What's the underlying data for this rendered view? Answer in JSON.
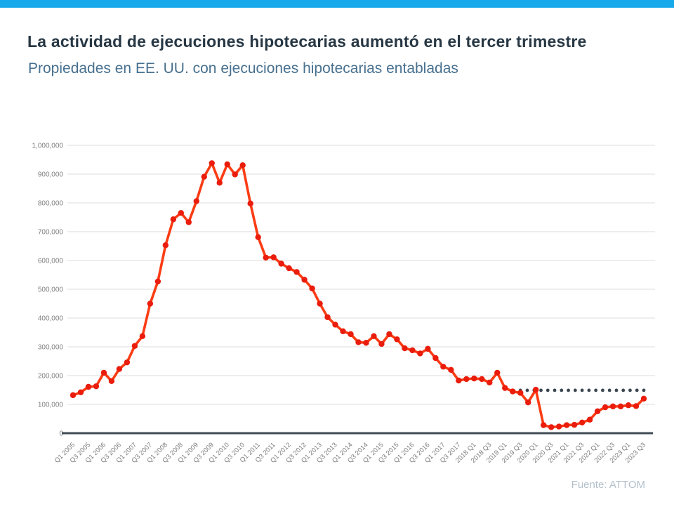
{
  "page": {
    "accent_bar_color": "#18a8ec",
    "background": "#ffffff"
  },
  "header": {
    "title": "La actividad de ejecuciones hipotecarias aumentó en el tercer trimestre",
    "title_color": "#273744",
    "subtitle": "Propiedades en EE. UU. con ejecuciones hipotecarias entabladas",
    "subtitle_color": "#47708f"
  },
  "chart_data": {
    "type": "line",
    "title": "Propiedades en EE. UU. con ejecuciones hipotecarias entabladas",
    "x": [
      "Q1 2005",
      "Q2 2005",
      "Q3 2005",
      "Q4 2005",
      "Q1 2006",
      "Q2 2006",
      "Q3 2006",
      "Q4 2006",
      "Q1 2007",
      "Q2 2007",
      "Q3 2007",
      "Q4 2007",
      "Q1 2008",
      "Q2 2008",
      "Q3 2008",
      "Q4 2008",
      "Q1 2009",
      "Q2 2009",
      "Q3 2009",
      "Q4 2009",
      "Q1 2010",
      "Q2 2010",
      "Q3 2010",
      "Q4 2010",
      "Q1 2011",
      "Q2 2011",
      "Q3 2011",
      "Q4 2011",
      "Q1 2012",
      "Q2 2012",
      "Q3 2012",
      "Q4 2012",
      "Q1 2013",
      "Q2 2013",
      "Q3 2013",
      "Q4 2013",
      "Q1 2014",
      "Q2 2014",
      "Q3 2014",
      "Q4 2014",
      "Q1 2015",
      "Q2 2015",
      "Q3 2015",
      "Q4 2015",
      "Q1 2016",
      "Q2 2016",
      "Q3 2016",
      "Q4 2016",
      "Q1 2017",
      "Q2 2017",
      "Q3 2017",
      "Q4 2017",
      "2018 Q1",
      "2018 Q2",
      "2018 Q3",
      "2018 Q4",
      "2019 Q1",
      "2019 Q2",
      "2019 Q3",
      "2019 Q4",
      "2020 Q1",
      "2020 Q2",
      "2020 Q3",
      "2020 Q4",
      "2021 Q1",
      "2021 Q2",
      "2021 Q3",
      "2021 Q4",
      "2022 Q1",
      "2022 Q2",
      "2022 Q3",
      "2022 Q4",
      "2023 Q1",
      "2023 Q2",
      "2023 Q3"
    ],
    "values": [
      132000,
      142000,
      161000,
      163000,
      210000,
      181000,
      223000,
      246000,
      303000,
      337000,
      450000,
      527000,
      653000,
      743000,
      765000,
      733000,
      806000,
      891000,
      938000,
      870000,
      934000,
      899000,
      931000,
      798000,
      681000,
      610000,
      611000,
      589000,
      573000,
      560000,
      533000,
      503000,
      450000,
      403000,
      377000,
      354000,
      344000,
      316000,
      314000,
      337000,
      310000,
      344000,
      326000,
      295000,
      288000,
      277000,
      293000,
      261000,
      231000,
      220000,
      183000,
      188000,
      190000,
      188000,
      176000,
      210000,
      157000,
      145000,
      140000,
      107000,
      151000,
      28000,
      21000,
      23000,
      28000,
      29000,
      37000,
      47000,
      76000,
      90000,
      93000,
      93000,
      97000,
      94000,
      120000
    ],
    "series_name": "Propiedades con ejecuciones hipotecarias entabladas",
    "x_tick_labels": [
      "Q1 2005",
      "Q3 2005",
      "Q1 2006",
      "Q3 2006",
      "Q1 2007",
      "Q3 2007",
      "Q1 2008",
      "Q3 2008",
      "Q1 2009",
      "Q3 2009",
      "Q1 2010",
      "Q3 2010",
      "Q1 2011",
      "Q3 2011",
      "Q1 2012",
      "Q3 2012",
      "Q1 2013",
      "Q3 2013",
      "Q1 2014",
      "Q3 2014",
      "Q1 2015",
      "Q3 2015",
      "Q1 2016",
      "Q3 2016",
      "Q1 2017",
      "Q3 2017",
      "2018 Q1",
      "2018 Q3",
      "2019 Q1",
      "2019 Q3",
      "2020 Q1",
      "2020 Q3",
      "2021 Q1",
      "2021 Q3",
      "2022 Q1",
      "2022 Q3",
      "2023 Q1",
      "2023 Q3"
    ],
    "y_ticks": [
      0,
      100000,
      200000,
      300000,
      400000,
      500000,
      600000,
      700000,
      800000,
      900000,
      1000000
    ],
    "y_tick_labels": [
      "0",
      "100,000",
      "200,000",
      "300,000",
      "400,000",
      "500,000",
      "600,000",
      "700,000",
      "800,000",
      "900,000",
      "1,000,000"
    ],
    "ylim": [
      0,
      1000000
    ],
    "grid": true,
    "legend": "none",
    "line_color": "#fb3c14",
    "point_color": "#ea1c0c",
    "grid_color": "#dcdcdc",
    "axis_line_color": "#414c55",
    "tick_label_color": "#7e7e7e",
    "reference_line": {
      "style": "dotted",
      "value": 149000,
      "start": "2019 Q3",
      "end": "2023 Q3",
      "color": "#3a4650"
    }
  },
  "footer": {
    "source_label": "Fuente: ATTOM",
    "color": "#b3c0cb"
  }
}
